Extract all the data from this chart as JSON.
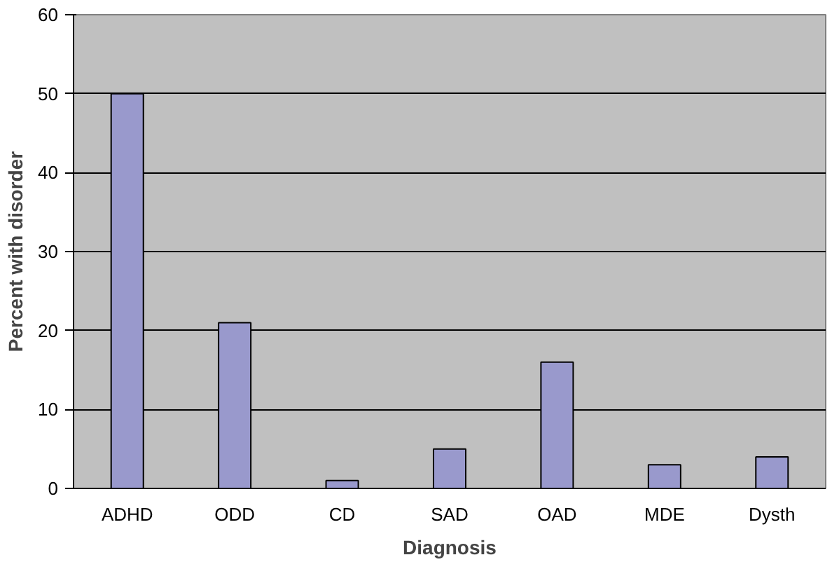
{
  "chart_data": {
    "type": "bar",
    "categories": [
      "ADHD",
      "ODD",
      "CD",
      "SAD",
      "OAD",
      "MDE",
      "Dysth"
    ],
    "values": [
      50,
      21,
      1,
      5,
      16,
      3,
      4
    ],
    "color": "#9999cc",
    "xlabel": "Diagnosis",
    "ylabel": "Percent with disorder",
    "ylim": [
      0,
      60
    ],
    "yticks": [
      0,
      10,
      20,
      30,
      40,
      50,
      60
    ],
    "grid": "y"
  }
}
